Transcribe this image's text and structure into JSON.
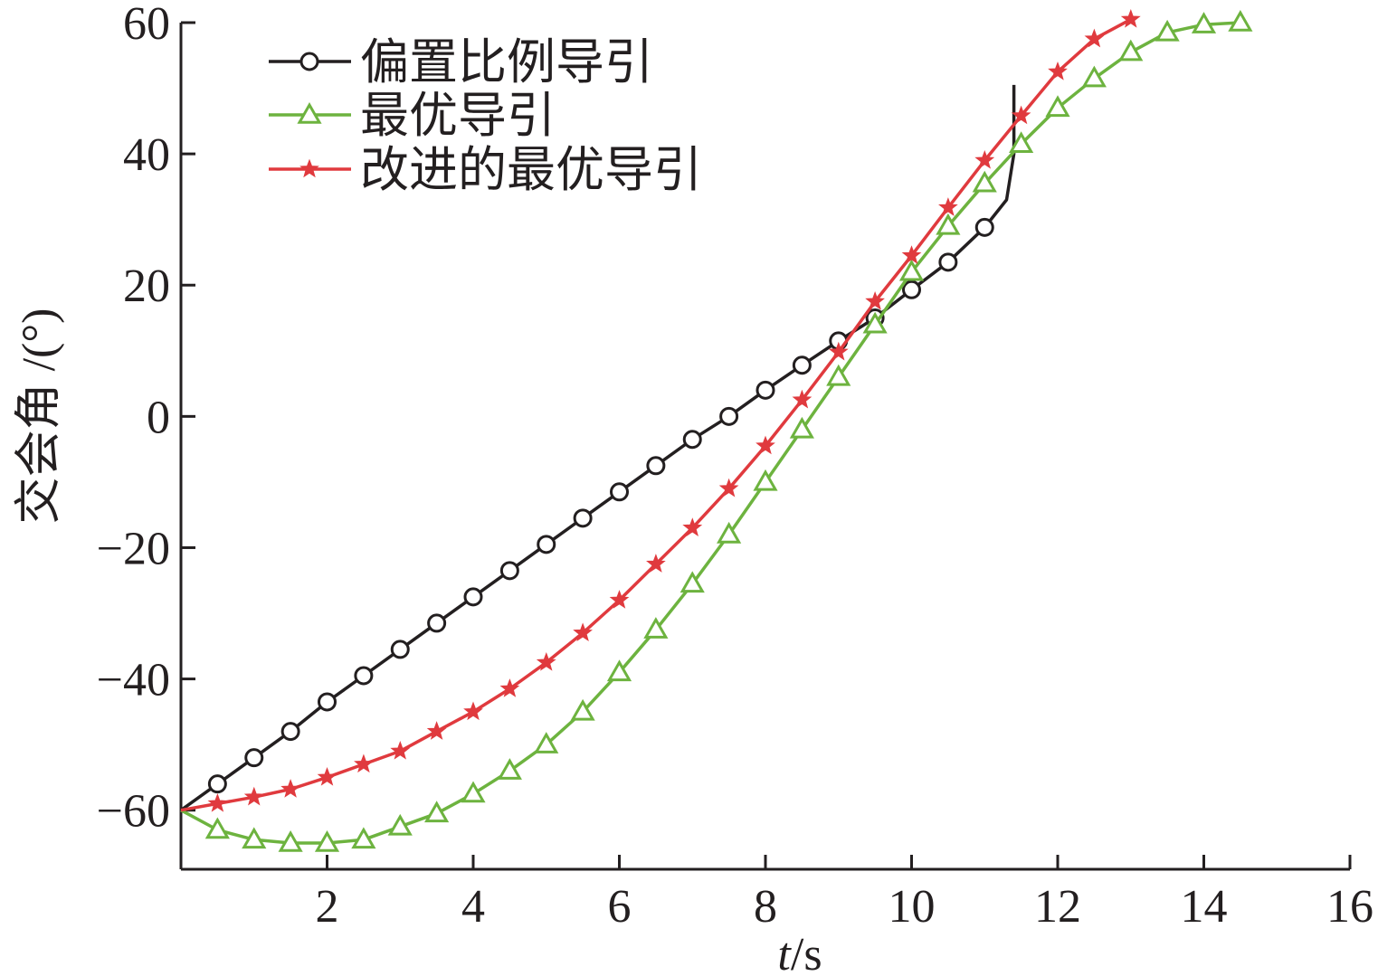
{
  "chart_data": {
    "type": "line",
    "title": "",
    "xlabel": "t/s",
    "ylabel": "交会角 /(°)",
    "xlim": [
      0,
      16
    ],
    "ylim": [
      -69,
      60
    ],
    "xticks": [
      2,
      4,
      6,
      8,
      10,
      12,
      14,
      16
    ],
    "xtick_labels": [
      "2",
      "4",
      "6",
      "8",
      "10",
      "12",
      "14",
      "16"
    ],
    "yticks": [
      60,
      40,
      20,
      0,
      -20,
      -40,
      -60
    ],
    "ytick_labels": [
      "60",
      "40",
      "20",
      "0",
      "−20",
      "−40",
      "−60"
    ],
    "grid": false,
    "legend": {
      "position": "top-left"
    },
    "series": [
      {
        "name": "偏置比例导引",
        "color": "#231f20",
        "marker": "circle",
        "x": [
          0,
          0.5,
          1,
          1.5,
          2,
          2.5,
          3,
          3.5,
          4,
          4.5,
          5,
          5.5,
          6,
          6.5,
          7,
          7.5,
          8,
          8.5,
          9,
          9.5,
          10,
          10.5,
          11,
          11.3,
          11.4,
          11.4
        ],
        "y": [
          -60,
          -56,
          -52,
          -48,
          -43.5,
          -39.5,
          -35.5,
          -31.5,
          -27.5,
          -23.5,
          -19.5,
          -15.5,
          -11.5,
          -7.5,
          -3.5,
          0,
          4,
          7.8,
          11.5,
          15,
          19.3,
          23.5,
          28.8,
          33,
          40,
          50.5
        ],
        "markers_x": [
          0.5,
          1,
          1.5,
          2,
          2.5,
          3,
          3.5,
          4,
          4.5,
          5,
          5.5,
          6,
          6.5,
          7,
          7.5,
          8,
          8.5,
          9,
          9.5,
          10,
          10.5,
          11
        ]
      },
      {
        "name": "最优导引",
        "color": "#6db33f",
        "marker": "triangle",
        "x": [
          0,
          0.5,
          1,
          1.5,
          2,
          2.5,
          3,
          3.5,
          4,
          4.5,
          5,
          5.5,
          6,
          6.5,
          7,
          7.5,
          8,
          8.5,
          9,
          9.5,
          10,
          10.5,
          11,
          11.5,
          12,
          12.5,
          13,
          13.5,
          14,
          14.5
        ],
        "y": [
          -60,
          -63,
          -64.5,
          -65,
          -65,
          -64.5,
          -62.5,
          -60.5,
          -57.5,
          -54,
          -50,
          -45,
          -39,
          -32.5,
          -25.5,
          -18,
          -10,
          -2,
          6,
          14,
          22,
          29,
          35.5,
          41.5,
          47,
          51.5,
          55.5,
          58.5,
          59.7,
          60
        ],
        "markers_x": [
          0.5,
          1,
          1.5,
          2,
          2.5,
          3,
          3.5,
          4,
          4.5,
          5,
          5.5,
          6,
          6.5,
          7,
          7.5,
          8,
          8.5,
          9,
          9.5,
          10,
          10.5,
          11,
          11.5,
          12,
          12.5,
          13,
          13.5,
          14,
          14.5
        ]
      },
      {
        "name": "改进的最优导引",
        "color": "#e03a3e",
        "marker": "star",
        "x": [
          0,
          0.5,
          1,
          1.5,
          2,
          2.5,
          3,
          3.5,
          4,
          4.5,
          5,
          5.5,
          6,
          6.5,
          7,
          7.5,
          8,
          8.5,
          9,
          9.5,
          10,
          10.5,
          11,
          11.5,
          12,
          12.5,
          13
        ],
        "y": [
          -60,
          -59,
          -58,
          -56.8,
          -55,
          -53,
          -51,
          -48,
          -45,
          -41.5,
          -37.5,
          -33,
          -28,
          -22.5,
          -17,
          -11,
          -4.5,
          2.5,
          9.8,
          17.5,
          24.5,
          31.8,
          39,
          45.8,
          52.5,
          57.5,
          60.5
        ],
        "markers_x": [
          0.5,
          1,
          1.5,
          2,
          2.5,
          3,
          3.5,
          4,
          4.5,
          5,
          5.5,
          6,
          6.5,
          7,
          7.5,
          8,
          8.5,
          9,
          9.5,
          10,
          10.5,
          11,
          11.5,
          12,
          12.5,
          13
        ]
      }
    ]
  }
}
